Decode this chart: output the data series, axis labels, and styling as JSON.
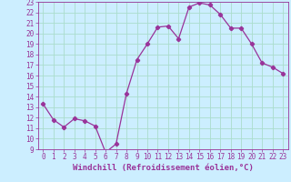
{
  "x": [
    0,
    1,
    2,
    3,
    4,
    5,
    6,
    7,
    8,
    9,
    10,
    11,
    12,
    13,
    14,
    15,
    16,
    17,
    18,
    19,
    20,
    21,
    22,
    23
  ],
  "y": [
    13.3,
    11.8,
    11.1,
    11.9,
    11.7,
    11.2,
    8.7,
    9.5,
    14.3,
    17.5,
    19.0,
    20.6,
    20.7,
    19.5,
    22.5,
    22.9,
    22.7,
    21.8,
    20.5,
    20.5,
    19.0,
    17.2,
    16.8,
    16.2
  ],
  "line_color": "#993399",
  "marker": "P",
  "bg_color": "#cceeff",
  "grid_color": "#aaddcc",
  "xlabel": "Windchill (Refroidissement éolien,°C)",
  "ylim": [
    9,
    23
  ],
  "xlim": [
    -0.5,
    23.5
  ],
  "yticks": [
    9,
    10,
    11,
    12,
    13,
    14,
    15,
    16,
    17,
    18,
    19,
    20,
    21,
    22,
    23
  ],
  "xticks": [
    0,
    1,
    2,
    3,
    4,
    5,
    6,
    7,
    8,
    9,
    10,
    11,
    12,
    13,
    14,
    15,
    16,
    17,
    18,
    19,
    20,
    21,
    22,
    23
  ],
  "axis_color": "#993399",
  "tick_fontsize": 5.5,
  "xlabel_fontsize": 6.5
}
